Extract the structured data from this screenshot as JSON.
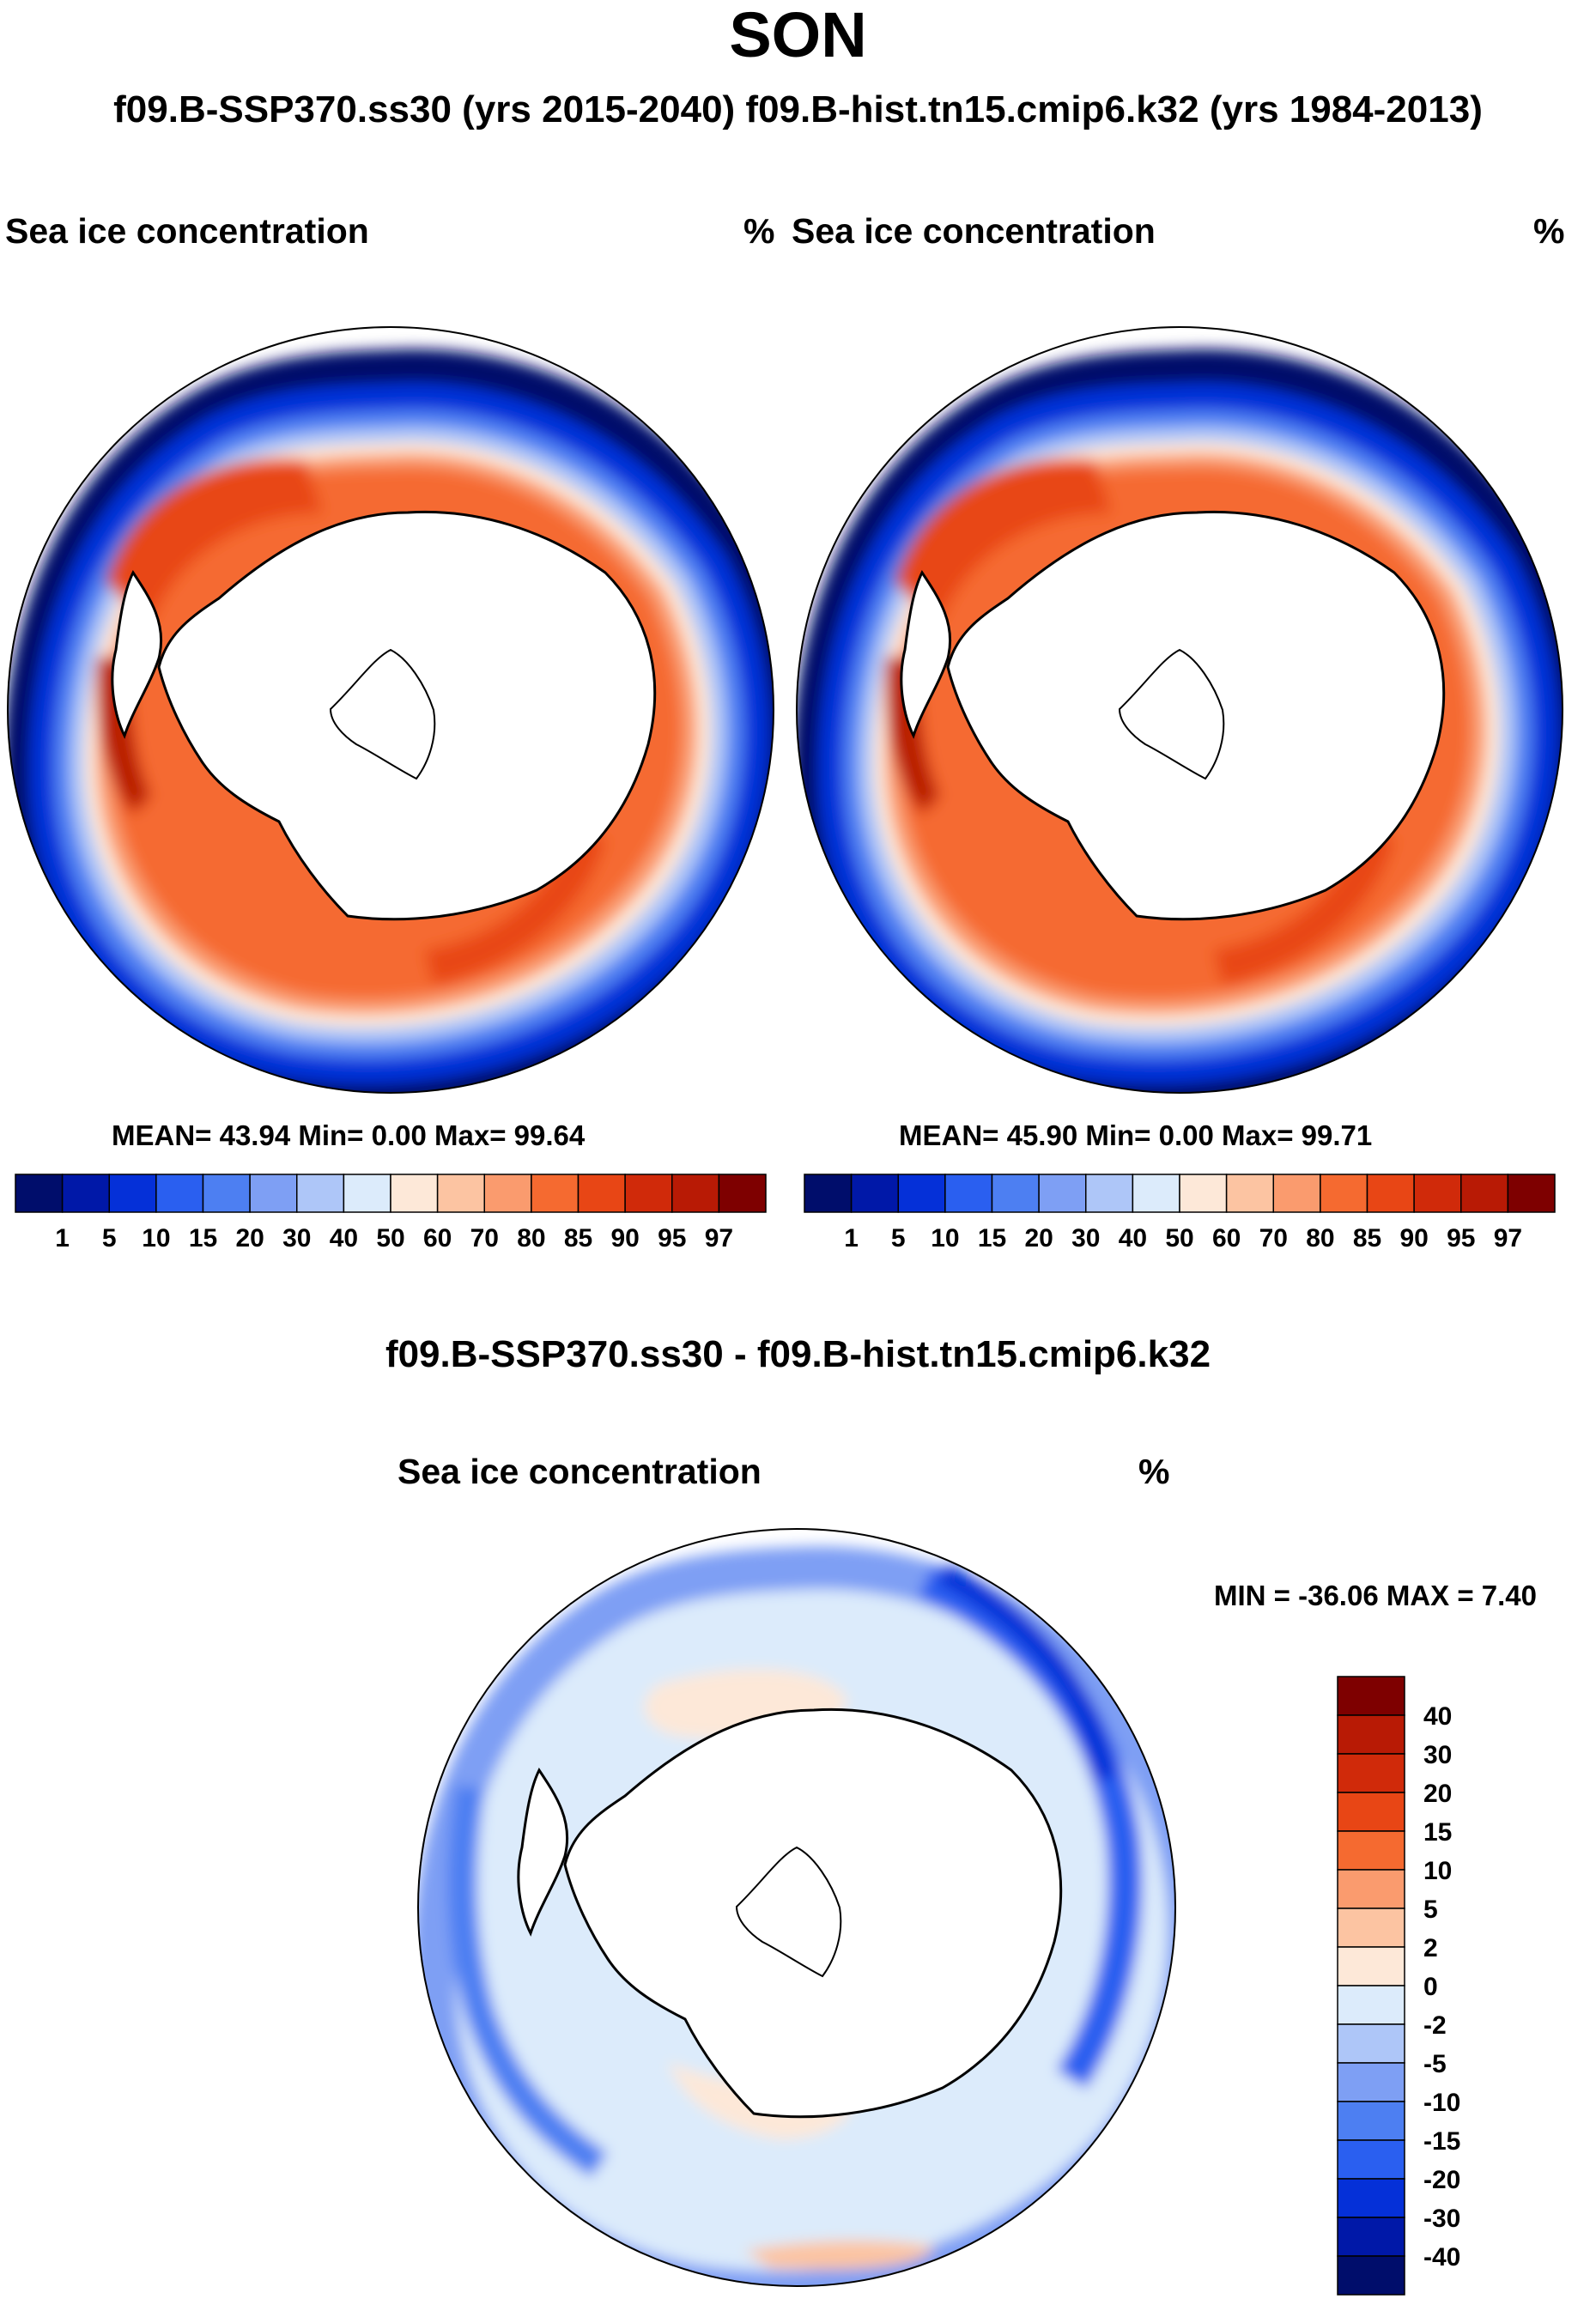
{
  "title": "SON",
  "subtitle": "f09.B-SSP370.ss30 (yrs 2015-2040)  f09.B-hist.tn15.cmip6.k32 (yrs 1984-2013)",
  "panels": [
    {
      "variable": "Sea ice concentration",
      "units": "%",
      "stats_text": "MEAN=  43.94  Min=   0.00  Max=  99.64",
      "mean": 43.94,
      "min": 0.0,
      "max": 99.64
    },
    {
      "variable": "Sea ice concentration",
      "units": "%",
      "stats_text": "MEAN=  45.90  Min=   0.00  Max=  99.71",
      "mean": 45.9,
      "min": 0.0,
      "max": 99.71
    }
  ],
  "diff_panel": {
    "title": "f09.B-SSP370.ss30 - f09.B-hist.tn15.cmip6.k32",
    "variable": "Sea ice concentration",
    "units": "%",
    "minmax_text": "MIN = -36.06 MAX =    7.40",
    "min": -36.06,
    "max": 7.4
  },
  "colorbar_main": {
    "labels": [
      "1",
      "5",
      "10",
      "15",
      "20",
      "30",
      "40",
      "50",
      "60",
      "70",
      "80",
      "85",
      "90",
      "95",
      "97"
    ],
    "colors": [
      "#000d6b",
      "#0018a8",
      "#0530d8",
      "#2a5ff0",
      "#4d7ff2",
      "#7e9ff4",
      "#aec6f8",
      "#dcebfb",
      "#fde8d8",
      "#fcc4a2",
      "#fa9b6e",
      "#f56a30",
      "#e84615",
      "#d02a0a",
      "#b81a05",
      "#7e0000"
    ]
  },
  "colorbar_diff": {
    "labels": [
      "40",
      "30",
      "20",
      "15",
      "10",
      "5",
      "2",
      "0",
      "-2",
      "-5",
      "-10",
      "-15",
      "-20",
      "-30",
      "-40"
    ],
    "colors": [
      "#7e0000",
      "#b81a05",
      "#d02a0a",
      "#e84615",
      "#f56a30",
      "#fa9b6e",
      "#fcc4a2",
      "#fde8d8",
      "#dcebfb",
      "#aec6f8",
      "#7e9ff4",
      "#4d7ff2",
      "#2a5ff0",
      "#0530d8",
      "#0018a8",
      "#000d6b"
    ]
  }
}
